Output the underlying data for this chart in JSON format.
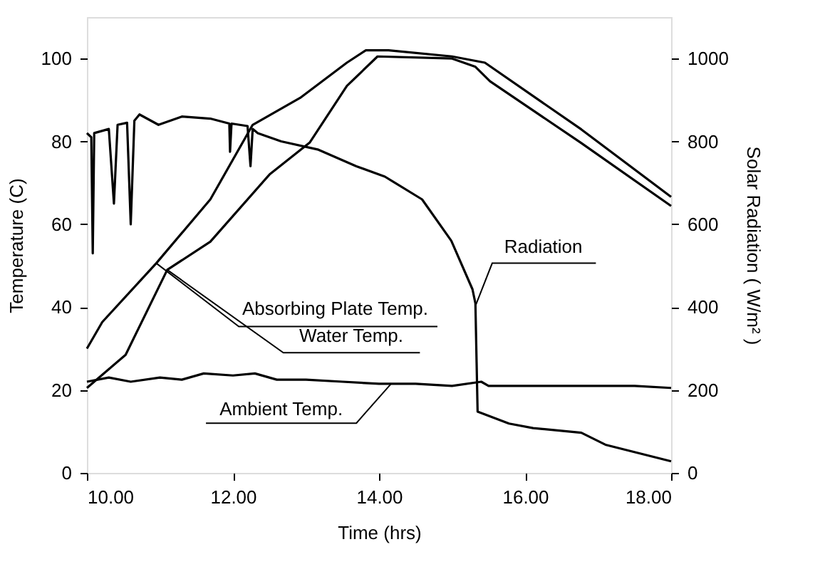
{
  "chart_data": {
    "type": "line",
    "xlabel": "Time (hrs)",
    "ylabel": "Temperature (C)",
    "y2label": "Solar Radiation ( W/m² )",
    "xlim": [
      10,
      18
    ],
    "xticks": [
      {
        "value": 10,
        "label": "10.00"
      },
      {
        "value": 12,
        "label": "12.00"
      },
      {
        "value": 14,
        "label": "14.00"
      },
      {
        "value": 16,
        "label": "16.00"
      },
      {
        "value": 18,
        "label": "18.00"
      }
    ],
    "ylim": [
      0,
      110
    ],
    "yticks": [
      0,
      20,
      40,
      60,
      80,
      100
    ],
    "y2lim": [
      0,
      1100
    ],
    "y2ticks": [
      0,
      200,
      400,
      600,
      800,
      1000
    ],
    "grid": false,
    "legend": false,
    "line_style": "solid",
    "marker": "none",
    "series": [
      {
        "color": "#000000",
        "x": [
          10.0,
          10.21,
          10.95,
          11.69,
          12.27,
          12.92,
          13.56,
          13.82,
          14.13,
          15.0,
          15.45,
          16.77,
          18.0
        ],
        "values": [
          30,
          36.4,
          50.6,
          66,
          84,
          90.5,
          99,
          102,
          102,
          100.5,
          99,
          82.9,
          66.6
        ]
      },
      {
        "color": "#000000",
        "x": [
          10.0,
          10.53,
          11.1,
          11.69,
          12.5,
          13.05,
          13.56,
          13.98,
          15.0,
          15.32,
          15.52,
          16.77,
          18.0
        ],
        "values": [
          20.5,
          28.5,
          49,
          55.8,
          72,
          79.7,
          93.4,
          100.5,
          100,
          98,
          94.5,
          79.6,
          64.4
        ]
      },
      {
        "color": "#000000",
        "x": [
          10.0,
          10.3,
          10.6,
          11.0,
          11.3,
          11.6,
          12.0,
          12.3,
          12.6,
          13.0,
          13.5,
          14.0,
          14.5,
          15.0,
          15.4,
          15.5,
          16.0,
          16.5,
          17.0,
          17.5,
          18.0
        ],
        "values": [
          22,
          23,
          22,
          23,
          22.5,
          24,
          23.5,
          24,
          22.5,
          22.5,
          22,
          21.5,
          21.5,
          21,
          22,
          21,
          21,
          21,
          21,
          21,
          20.5
        ]
      },
      {
        "color": "#000000",
        "axis": "y2",
        "x": [
          10.0,
          10.06,
          10.08,
          10.1,
          10.3,
          10.37,
          10.42,
          10.55,
          10.6,
          10.65,
          10.72,
          10.98,
          11.3,
          11.69,
          11.95,
          11.96,
          11.98,
          12.2,
          12.24,
          12.27,
          12.34,
          12.66,
          13.17,
          13.69,
          14.08,
          14.59,
          14.99,
          15.28,
          15.32,
          15.35,
          15.78,
          16.11,
          16.77,
          17.1,
          18.0
        ],
        "values": [
          820,
          810,
          530,
          820,
          830,
          650,
          840,
          845,
          600,
          850,
          865,
          840,
          860,
          855,
          843,
          775,
          843,
          837,
          740,
          830,
          820,
          800,
          780,
          740,
          715,
          660,
          560,
          443,
          409,
          148,
          119,
          108,
          97,
          68,
          28
        ]
      }
    ],
    "annotations": [
      {
        "text": "Absorbing Plate Temp.",
        "x": 10.95,
        "y": 50.6
      },
      {
        "text": "Water Temp.",
        "x": 11.1,
        "y": 49
      },
      {
        "text": "Ambient Temp.",
        "x": 14.17,
        "y": 21.6
      },
      {
        "text": "Radiation",
        "x": 15.32,
        "y": 40.3
      }
    ]
  }
}
